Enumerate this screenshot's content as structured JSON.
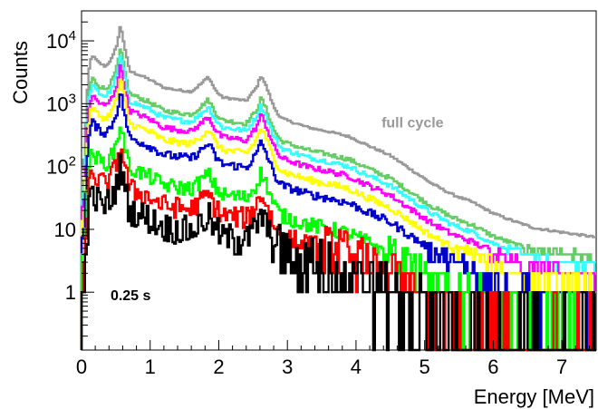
{
  "chart_data": {
    "type": "line",
    "title": "",
    "xlabel": "Energy [MeV]",
    "ylabel": "Counts",
    "xlim": [
      0,
      7.5
    ],
    "ylim": [
      0.12,
      30000
    ],
    "yscale": "log",
    "grid": false,
    "x_ticks": [
      {
        "value": 0,
        "label": "0"
      },
      {
        "value": 1,
        "label": "1"
      },
      {
        "value": 2,
        "label": "2"
      },
      {
        "value": 3,
        "label": "3"
      },
      {
        "value": 4,
        "label": "4"
      },
      {
        "value": 5,
        "label": "5"
      },
      {
        "value": 6,
        "label": "6"
      },
      {
        "value": 7,
        "label": "7"
      }
    ],
    "y_ticks": [
      {
        "value": 1,
        "label": "1"
      },
      {
        "value": 10,
        "label": "10"
      },
      {
        "value": 100,
        "label": "10^2"
      },
      {
        "value": 1000,
        "label": "10^3"
      },
      {
        "value": 10000,
        "label": "10^4"
      }
    ],
    "annotations": [
      {
        "text": "full cycle",
        "x": 4.9,
        "y": 420,
        "color": "#999999"
      },
      {
        "text": "0.25 s",
        "x": 0.95,
        "y": 0.75,
        "color": "#000000"
      }
    ],
    "series": [
      {
        "color": "#999999",
        "scale": 30,
        "noise": 0.04
      },
      {
        "color": "#66cc66",
        "scale": 13,
        "noise": 0.08
      },
      {
        "color": "#33ffff",
        "scale": 10,
        "noise": 0.09
      },
      {
        "color": "#ff00ff",
        "scale": 7,
        "noise": 0.1
      },
      {
        "color": "#ffff00",
        "scale": 4.4,
        "noise": 0.12
      },
      {
        "color": "#0000cc",
        "scale": 2.6,
        "noise": 0.15
      },
      {
        "color": "#00ff00",
        "scale": 0.85,
        "noise": 0.28
      },
      {
        "color": "#ff0000",
        "scale": 0.4,
        "noise": 0.4
      },
      {
        "color": "#000000",
        "scale": 0.18,
        "noise": 0.55
      }
    ],
    "base_shape": {
      "x": [
        0.03,
        0.1,
        0.15,
        0.25,
        0.35,
        0.45,
        0.52,
        0.57,
        0.62,
        0.7,
        0.85,
        1.0,
        1.2,
        1.4,
        1.6,
        1.75,
        1.85,
        1.95,
        2.05,
        2.2,
        2.4,
        2.55,
        2.62,
        2.7,
        2.8,
        2.9,
        3.0,
        3.3,
        3.6,
        3.9,
        4.2,
        4.5,
        4.8,
        5.1,
        5.4,
        5.7,
        6.0,
        6.3,
        6.6,
        7.0,
        7.5
      ],
      "y": [
        3,
        100,
        200,
        150,
        130,
        180,
        300,
        600,
        300,
        110,
        95,
        80,
        60,
        55,
        52,
        70,
        90,
        55,
        42,
        40,
        37,
        60,
        95,
        60,
        30,
        20,
        18,
        14,
        12,
        10,
        7,
        5,
        3,
        1.8,
        1.2,
        0.9,
        0.6,
        0.45,
        0.35,
        0.3,
        0.25
      ]
    }
  }
}
